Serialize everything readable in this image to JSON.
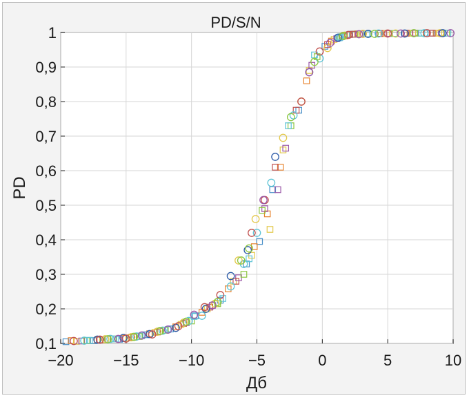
{
  "chart_data": {
    "type": "scatter",
    "title": "PD/S/N",
    "xlabel": "Дб",
    "ylabel": "PD",
    "xlim": [
      -20,
      10
    ],
    "ylim": [
      0.1,
      1.0
    ],
    "xticks": [
      -20,
      -15,
      -10,
      -5,
      0,
      5,
      10
    ],
    "xtick_labels": [
      "−20",
      "−15",
      "−10",
      "−5",
      "0",
      "5",
      "10"
    ],
    "yticks": [
      0.1,
      0.2,
      0.3,
      0.4,
      0.5,
      0.6,
      0.7,
      0.8,
      0.9,
      1.0
    ],
    "ytick_labels": [
      "0,1",
      "0,2",
      "0,3",
      "0,4",
      "0,5",
      "0,6",
      "0,7",
      "0,8",
      "0,9",
      "1"
    ],
    "grid": true,
    "legend": "none",
    "series": [
      {
        "marker": "square",
        "color": "#4a90c8",
        "points": [
          [
            -19.6,
            0.105
          ],
          [
            -17.5,
            0.108
          ],
          [
            -15.5,
            0.112
          ],
          [
            -13.5,
            0.125
          ],
          [
            -11.6,
            0.142
          ],
          [
            -9.7,
            0.18
          ],
          [
            -7.8,
            0.225
          ],
          [
            -5.8,
            0.33
          ],
          [
            -4.8,
            0.395
          ],
          [
            -3.8,
            0.545
          ],
          [
            -1.8,
            0.775
          ],
          [
            0.2,
            0.96
          ],
          [
            1.3,
            0.985
          ],
          [
            2.3,
            0.995
          ],
          [
            4.3,
            0.997
          ],
          [
            6.3,
            0.998
          ],
          [
            8.3,
            0.998
          ]
        ]
      },
      {
        "marker": "square",
        "color": "#e8842f",
        "points": [
          [
            -19.2,
            0.108
          ],
          [
            -17.2,
            0.11
          ],
          [
            -15.2,
            0.115
          ],
          [
            -13.2,
            0.128
          ],
          [
            -11.2,
            0.148
          ],
          [
            -9.2,
            0.19
          ],
          [
            -7.2,
            0.258
          ],
          [
            -5.2,
            0.38
          ],
          [
            -4.2,
            0.475
          ],
          [
            -3.2,
            0.61
          ],
          [
            -1.2,
            0.86
          ],
          [
            0.7,
            0.975
          ],
          [
            1.7,
            0.99
          ],
          [
            2.7,
            0.996
          ],
          [
            4.7,
            0.997
          ],
          [
            6.7,
            0.998
          ],
          [
            8.7,
            0.998
          ]
        ]
      },
      {
        "marker": "square",
        "color": "#e3c84a",
        "points": [
          [
            -18.8,
            0.106
          ],
          [
            -16.8,
            0.11
          ],
          [
            -14.8,
            0.116
          ],
          [
            -12.8,
            0.132
          ],
          [
            -10.8,
            0.155
          ],
          [
            -8.8,
            0.2
          ],
          [
            -6.8,
            0.28
          ],
          [
            -5.4,
            0.355
          ],
          [
            -4.0,
            0.43
          ],
          [
            -3.0,
            0.66
          ],
          [
            -1.0,
            0.89
          ],
          [
            0.9,
            0.98
          ],
          [
            1.9,
            0.993
          ],
          [
            2.9,
            0.996
          ],
          [
            4.9,
            0.997
          ],
          [
            6.9,
            0.998
          ],
          [
            8.9,
            0.998
          ]
        ]
      },
      {
        "marker": "square",
        "color": "#9b59a8",
        "points": [
          [
            -18.4,
            0.107
          ],
          [
            -16.4,
            0.112
          ],
          [
            -14.4,
            0.118
          ],
          [
            -12.4,
            0.135
          ],
          [
            -10.4,
            0.16
          ],
          [
            -8.4,
            0.21
          ],
          [
            -6.4,
            0.29
          ],
          [
            -4.4,
            0.49
          ],
          [
            -3.4,
            0.545
          ],
          [
            -2.8,
            0.665
          ],
          [
            -0.8,
            0.905
          ],
          [
            1.1,
            0.982
          ],
          [
            2.1,
            0.994
          ],
          [
            3.1,
            0.996
          ],
          [
            5.1,
            0.997
          ],
          [
            7.1,
            0.998
          ],
          [
            9.1,
            0.998
          ]
        ]
      },
      {
        "marker": "square",
        "color": "#8cc63f",
        "points": [
          [
            -18.0,
            0.108
          ],
          [
            -16.0,
            0.113
          ],
          [
            -14.0,
            0.12
          ],
          [
            -12.0,
            0.138
          ],
          [
            -10.0,
            0.165
          ],
          [
            -8.0,
            0.215
          ],
          [
            -6.0,
            0.3
          ],
          [
            -4.6,
            0.485
          ],
          [
            -2.4,
            0.73
          ],
          [
            -0.4,
            0.93
          ],
          [
            1.5,
            0.988
          ],
          [
            2.5,
            0.995
          ],
          [
            3.5,
            0.996
          ],
          [
            5.5,
            0.997
          ],
          [
            7.5,
            0.998
          ],
          [
            9.5,
            0.998
          ]
        ]
      },
      {
        "marker": "square",
        "color": "#5ec4d6",
        "points": [
          [
            -17.8,
            0.109
          ],
          [
            -15.8,
            0.113
          ],
          [
            -13.8,
            0.122
          ],
          [
            -11.8,
            0.14
          ],
          [
            -9.8,
            0.178
          ],
          [
            -7.6,
            0.23
          ],
          [
            -5.6,
            0.345
          ],
          [
            -2.6,
            0.73
          ],
          [
            -0.6,
            0.935
          ],
          [
            1.4,
            0.987
          ],
          [
            3.4,
            0.996
          ],
          [
            5.6,
            0.997
          ],
          [
            7.6,
            0.998
          ],
          [
            9.6,
            0.998
          ]
        ]
      },
      {
        "marker": "square",
        "color": "#c0504d",
        "points": [
          [
            -17.0,
            0.11
          ],
          [
            -14.6,
            0.118
          ],
          [
            -12.6,
            0.133
          ],
          [
            -10.6,
            0.158
          ],
          [
            -8.6,
            0.205
          ],
          [
            -6.6,
            0.28
          ],
          [
            -3.6,
            0.61
          ],
          [
            -2.0,
            0.775
          ],
          [
            0.4,
            0.965
          ],
          [
            2.4,
            0.995
          ],
          [
            4.4,
            0.997
          ],
          [
            6.4,
            0.998
          ],
          [
            8.4,
            0.998
          ]
        ]
      },
      {
        "marker": "circle",
        "color": "#5ec4d6",
        "points": [
          [
            -18.2,
            0.108
          ],
          [
            -16.2,
            0.113
          ],
          [
            -14.2,
            0.12
          ],
          [
            -12.2,
            0.137
          ],
          [
            -10.2,
            0.165
          ],
          [
            -9.2,
            0.18
          ],
          [
            -7.0,
            0.265
          ],
          [
            -6.0,
            0.33
          ],
          [
            -5.0,
            0.42
          ],
          [
            -3.9,
            0.565
          ],
          [
            -2.2,
            0.76
          ],
          [
            -0.2,
            0.925
          ],
          [
            1.3,
            0.985
          ],
          [
            4.3,
            0.997
          ],
          [
            7.8,
            0.998
          ]
        ]
      },
      {
        "marker": "circle",
        "color": "#e3c84a",
        "points": [
          [
            -16.6,
            0.112
          ],
          [
            -14.6,
            0.118
          ],
          [
            -12.6,
            0.134
          ],
          [
            -10.6,
            0.16
          ],
          [
            -8.2,
            0.215
          ],
          [
            -6.4,
            0.34
          ],
          [
            -5.1,
            0.46
          ],
          [
            -3.0,
            0.695
          ],
          [
            -1.6,
            0.8
          ],
          [
            0.4,
            0.955
          ],
          [
            3.1,
            0.996
          ],
          [
            5.6,
            0.997
          ],
          [
            9.0,
            0.998
          ]
        ]
      },
      {
        "marker": "circle",
        "color": "#2e5ca8",
        "points": [
          [
            -17.2,
            0.111
          ],
          [
            -15.2,
            0.116
          ],
          [
            -13.2,
            0.127
          ],
          [
            -11.2,
            0.145
          ],
          [
            -8.9,
            0.2
          ],
          [
            -7.0,
            0.295
          ],
          [
            -5.7,
            0.37
          ],
          [
            -3.6,
            0.64
          ],
          [
            -1.0,
            0.885
          ],
          [
            1.2,
            0.985
          ],
          [
            3.5,
            0.996
          ],
          [
            6.3,
            0.997
          ],
          [
            9.2,
            0.998
          ]
        ]
      },
      {
        "marker": "circle",
        "color": "#c0504d",
        "points": [
          [
            -19.0,
            0.107
          ],
          [
            -17.0,
            0.111
          ],
          [
            -15.0,
            0.114
          ],
          [
            -13.0,
            0.126
          ],
          [
            -11.0,
            0.15
          ],
          [
            -9.0,
            0.205
          ],
          [
            -7.8,
            0.24
          ],
          [
            -5.4,
            0.42
          ],
          [
            -4.4,
            0.515
          ],
          [
            -1.6,
            0.8
          ],
          [
            -0.2,
            0.945
          ],
          [
            2.0,
            0.993
          ],
          [
            5.0,
            0.997
          ],
          [
            8.0,
            0.998
          ]
        ]
      },
      {
        "marker": "circle",
        "color": "#9b59a8",
        "points": [
          [
            -15.6,
            0.113
          ],
          [
            -13.8,
            0.123
          ],
          [
            -11.8,
            0.14
          ],
          [
            -9.8,
            0.183
          ],
          [
            -8.4,
            0.21
          ],
          [
            -4.5,
            0.515
          ],
          [
            -1.0,
            0.885
          ],
          [
            0.6,
            0.97
          ],
          [
            2.8,
            0.995
          ],
          [
            6.0,
            0.997
          ],
          [
            9.8,
            0.998
          ]
        ]
      },
      {
        "marker": "circle",
        "color": "#8cc63f",
        "points": [
          [
            -16.4,
            0.112
          ],
          [
            -14.4,
            0.119
          ],
          [
            -12.4,
            0.136
          ],
          [
            -10.4,
            0.163
          ],
          [
            -8.0,
            0.22
          ],
          [
            -6.2,
            0.34
          ],
          [
            -5.6,
            0.375
          ],
          [
            -2.4,
            0.755
          ],
          [
            -0.6,
            0.915
          ],
          [
            1.6,
            0.99
          ],
          [
            4.0,
            0.996
          ],
          [
            7.0,
            0.998
          ]
        ]
      }
    ]
  }
}
